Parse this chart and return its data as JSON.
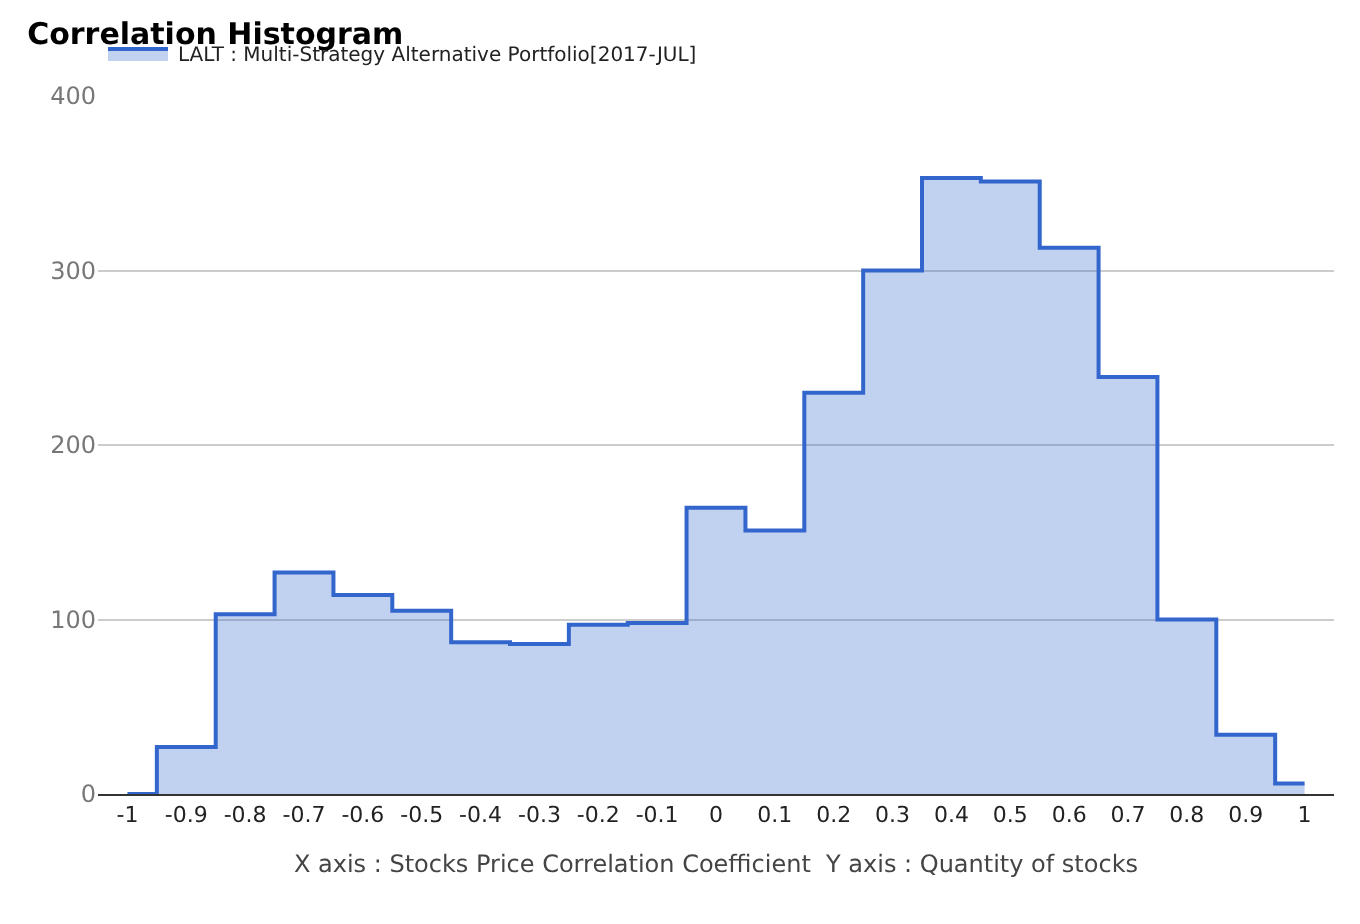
{
  "chart_data": {
    "type": "step",
    "title": "Correlation Histogram",
    "xlabel": "X axis : Stocks Price Correlation Coefficient  Y axis : Quantity of stocks",
    "x": [
      -1,
      -0.9,
      -0.8,
      -0.7,
      -0.6,
      -0.5,
      -0.4,
      -0.3,
      -0.2,
      -0.1,
      0,
      0.1,
      0.2,
      0.3,
      0.4,
      0.5,
      0.6,
      0.7,
      0.8,
      0.9,
      1
    ],
    "series": [
      {
        "name": "LALT : Multi-Strategy Alternative Portfolio[2017-JUL]",
        "color": "#3366cc",
        "values": [
          0,
          27,
          103,
          127,
          114,
          105,
          87,
          86,
          97,
          98,
          164,
          151,
          230,
          300,
          353,
          351,
          313,
          239,
          100,
          34,
          6
        ]
      }
    ],
    "xlim": [
      -1.05,
      1.05
    ],
    "xticks": [
      -1,
      -0.9,
      -0.8,
      -0.7,
      -0.6,
      -0.5,
      -0.4,
      -0.3,
      -0.2,
      -0.1,
      0,
      0.1,
      0.2,
      0.3,
      0.4,
      0.5,
      0.6,
      0.7,
      0.8,
      0.9,
      1
    ],
    "ylim": [
      0,
      400
    ],
    "yticks": [
      0,
      100,
      200,
      300,
      400
    ],
    "grid": "y",
    "legend": "top left",
    "marker": "none"
  }
}
